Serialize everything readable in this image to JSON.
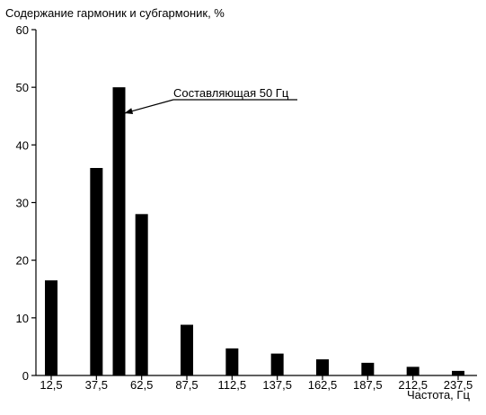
{
  "chart_data": {
    "type": "bar",
    "ylabel": "Содержание гармоник и субгармоник, %",
    "xlabel": "Частота, Гц",
    "ylim": [
      0,
      60
    ],
    "yticks": [
      "0",
      "10",
      "20",
      "30",
      "40",
      "50",
      "60"
    ],
    "xtick_labels": [
      "12,5",
      "37,5",
      "62,5",
      "87,5",
      "112,5",
      "137,5",
      "162,5",
      "187,5",
      "212,5",
      "237,5"
    ],
    "xticks": [
      12.5,
      37.5,
      62.5,
      87.5,
      112.5,
      137.5,
      162.5,
      187.5,
      212.5,
      237.5
    ],
    "x": [
      12.5,
      37.5,
      50,
      62.5,
      87.5,
      112.5,
      137.5,
      162.5,
      187.5,
      212.5,
      237.5
    ],
    "values": [
      16.5,
      36,
      50,
      28,
      8.8,
      4.7,
      3.8,
      2.8,
      2.2,
      1.5,
      0.8
    ],
    "color": "#000000",
    "grid": false,
    "annotation": {
      "text": "Составляющая 50 Гц",
      "target_x": 50,
      "target_y": 45.5
    }
  }
}
